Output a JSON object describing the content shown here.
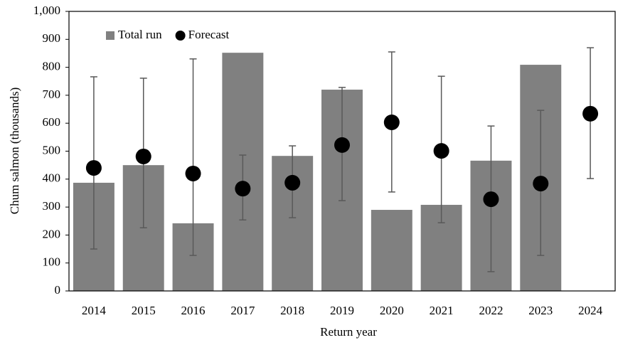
{
  "chart_data": {
    "type": "bar",
    "x_label": "Return year",
    "y_label": "Chum salmon (thousands)",
    "categories": [
      "2014",
      "2015",
      "2016",
      "2017",
      "2018",
      "2019",
      "2020",
      "2021",
      "2022",
      "2023",
      "2024"
    ],
    "series": [
      {
        "name": "Total run",
        "type": "bar",
        "color": "#808080",
        "values": [
          387,
          450,
          242,
          852,
          483,
          720,
          290,
          308,
          466,
          809,
          null
        ]
      },
      {
        "name": "Forecast",
        "type": "scatter",
        "color": "#000000",
        "error_color": "#595959",
        "values": [
          440,
          481,
          420,
          366,
          387,
          522,
          603,
          501,
          328,
          384,
          634
        ],
        "lower": [
          150,
          226,
          127,
          254,
          262,
          323,
          354,
          244,
          69,
          127,
          402
        ],
        "upper": [
          766,
          761,
          830,
          486,
          519,
          728,
          855,
          768,
          590,
          646,
          870
        ]
      }
    ],
    "ylim": [
      0,
      1000
    ],
    "yticks": [
      0,
      100,
      200,
      300,
      400,
      500,
      600,
      700,
      800,
      900,
      {
        "value": 1000,
        "label": "1,000"
      }
    ],
    "legend": "top-left"
  }
}
